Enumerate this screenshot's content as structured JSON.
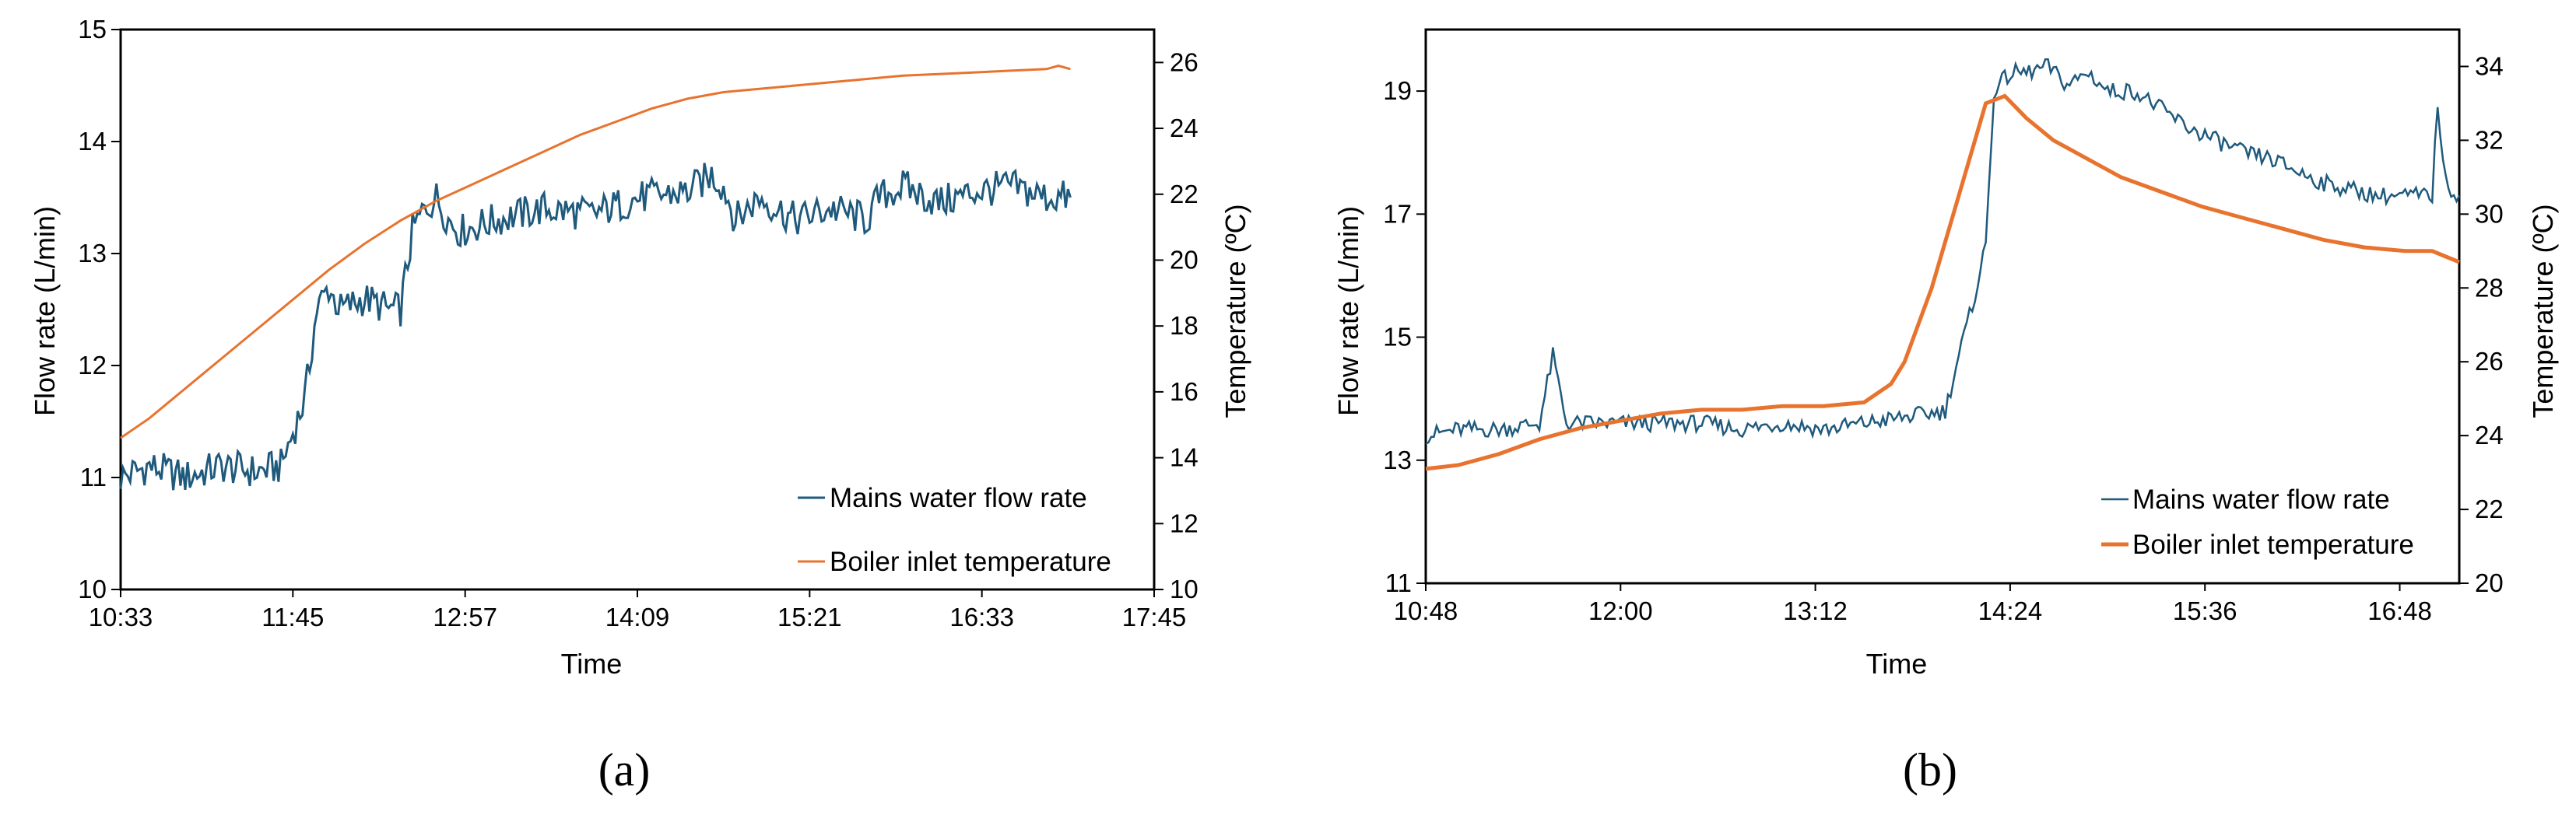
{
  "chart_data": [
    {
      "type": "line",
      "panel_label": "(a)",
      "xlabel": "Time",
      "ylabel": "Flow rate (L/min)",
      "y2label": "Temperature (ºC)",
      "x_ticks": [
        "10:33",
        "11:45",
        "12:57",
        "14:09",
        "15:21",
        "16:33",
        "17:45"
      ],
      "y_ticks": [
        "10",
        "11",
        "12",
        "13",
        "14",
        "15"
      ],
      "y2_ticks": [
        "10",
        "12",
        "14",
        "16",
        "18",
        "20",
        "22",
        "24",
        "26"
      ],
      "xlim_minutes": [
        633,
        1065
      ],
      "ylim": [
        10,
        15
      ],
      "y2lim": [
        10,
        27
      ],
      "legend": [
        "Mains water flow rate",
        "Boiler inlet temperature"
      ],
      "series": [
        {
          "name": "Mains water flow rate",
          "axis": "left",
          "color": "#1f5a7d",
          "x_minutes": [
            633,
            645,
            660,
            675,
            690,
            700,
            705,
            710,
            715,
            720,
            722,
            725,
            735,
            745,
            750,
            755,
            760,
            765,
            770,
            775,
            790,
            810,
            830,
            850,
            870,
            880,
            885,
            890,
            900,
            915,
            930,
            945,
            950,
            960,
            975,
            990,
            1005,
            1020,
            1030
          ],
          "values": [
            11.0,
            11.1,
            11.0,
            11.1,
            11.05,
            11.1,
            11.4,
            11.7,
            12.5,
            12.7,
            12.6,
            12.5,
            12.6,
            12.5,
            12.5,
            13.2,
            13.4,
            13.5,
            13.3,
            13.2,
            13.3,
            13.4,
            13.35,
            13.5,
            13.55,
            13.7,
            13.6,
            13.3,
            13.5,
            13.3,
            13.4,
            13.3,
            13.5,
            13.6,
            13.45,
            13.55,
            13.6,
            13.5,
            13.5
          ]
        },
        {
          "name": "Boiler inlet temperature",
          "axis": "right",
          "color": "#e8732e",
          "x_minutes": [
            633,
            645,
            660,
            675,
            690,
            705,
            720,
            735,
            750,
            765,
            780,
            795,
            810,
            825,
            840,
            855,
            870,
            885,
            900,
            915,
            930,
            945,
            960,
            975,
            990,
            1005,
            1020,
            1025,
            1030
          ],
          "values": [
            14.6,
            15.2,
            16.1,
            17.0,
            17.9,
            18.8,
            19.7,
            20.5,
            21.2,
            21.8,
            22.3,
            22.8,
            23.3,
            23.8,
            24.2,
            24.6,
            24.9,
            25.1,
            25.2,
            25.3,
            25.4,
            25.5,
            25.6,
            25.65,
            25.7,
            25.75,
            25.8,
            25.9,
            25.8
          ]
        }
      ]
    },
    {
      "type": "line",
      "panel_label": "(b)",
      "xlabel": "Time",
      "ylabel": "Flow rate (L/min)",
      "y2label": "Temperature (ºC)",
      "x_ticks": [
        "10:48",
        "12:00",
        "13:12",
        "14:24",
        "15:36",
        "16:48"
      ],
      "y_ticks": [
        "11",
        "13",
        "15",
        "17",
        "19"
      ],
      "y2_ticks": [
        "20",
        "22",
        "24",
        "26",
        "28",
        "30",
        "32",
        "34"
      ],
      "xlim_minutes": [
        648,
        1030
      ],
      "ylim": [
        11,
        20
      ],
      "y2lim": [
        20,
        35
      ],
      "legend": [
        "Mains water flow rate",
        "Boiler inlet temperature"
      ],
      "series": [
        {
          "name": "Mains water flow rate",
          "axis": "left",
          "color": "#1f5a7d",
          "x_minutes": [
            648,
            660,
            675,
            690,
            695,
            700,
            710,
            720,
            735,
            750,
            765,
            780,
            795,
            810,
            825,
            840,
            845,
            850,
            855,
            858,
            862,
            865,
            870,
            878,
            885,
            893,
            900,
            910,
            920,
            930,
            940,
            950,
            960,
            970,
            980,
            990,
            1000,
            1010,
            1020,
            1022,
            1025,
            1030
          ],
          "values": [
            13.4,
            13.5,
            13.5,
            13.6,
            14.7,
            13.6,
            13.6,
            13.6,
            13.6,
            13.6,
            13.5,
            13.6,
            13.5,
            13.6,
            13.7,
            13.8,
            14.7,
            15.5,
            16.5,
            19.0,
            19.2,
            19.3,
            19.3,
            19.4,
            19.1,
            19.3,
            19.0,
            19.0,
            18.7,
            18.4,
            18.2,
            18.0,
            17.9,
            17.7,
            17.5,
            17.4,
            17.3,
            17.3,
            17.3,
            18.8,
            17.5,
            17.3
          ]
        },
        {
          "name": "Boiler inlet temperature",
          "axis": "right",
          "color": "#e8732e",
          "x_minutes": [
            648,
            660,
            675,
            690,
            705,
            720,
            735,
            750,
            765,
            780,
            795,
            810,
            820,
            825,
            835,
            845,
            855,
            862,
            870,
            880,
            890,
            905,
            920,
            935,
            950,
            965,
            980,
            995,
            1010,
            1020,
            1030
          ],
          "values": [
            23.1,
            23.2,
            23.5,
            23.9,
            24.2,
            24.4,
            24.6,
            24.7,
            24.7,
            24.8,
            24.8,
            24.9,
            25.4,
            26.0,
            28.0,
            30.5,
            33.0,
            33.2,
            32.6,
            32.0,
            31.6,
            31.0,
            30.6,
            30.2,
            29.9,
            29.6,
            29.3,
            29.1,
            29.0,
            29.0,
            28.7
          ]
        }
      ]
    }
  ]
}
